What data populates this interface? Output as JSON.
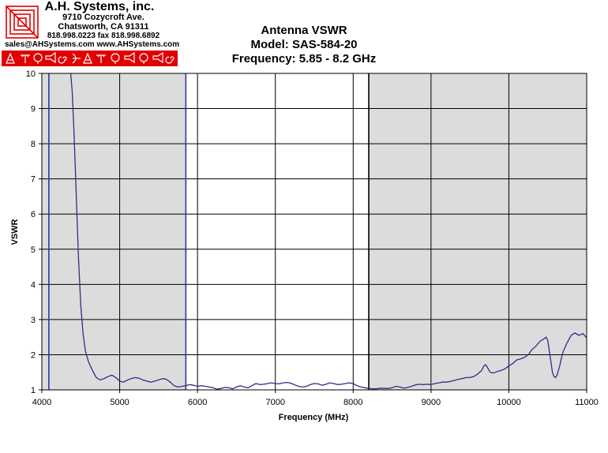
{
  "company": {
    "name": "A.H. Systems, inc.",
    "street": "9710 Cozycroft Ave.",
    "city": "Chatsworth, CA 91311",
    "phone": "818.998.0223 fax 818.998.6892",
    "contact": "sales@AHSystems.com www.AHSystems.com",
    "brand_color": "#e00000"
  },
  "chart_data": {
    "type": "line",
    "title": "Antenna VSWR",
    "subtitle_model": "Model: SAS-584-20",
    "subtitle_freq": "Frequency: 5.85 - 8.2 GHz",
    "xlabel": "Frequency (MHz)",
    "ylabel": "VSWR",
    "xlim": [
      4000,
      11000
    ],
    "ylim": [
      1,
      10
    ],
    "xticks": [
      4000,
      5000,
      6000,
      7000,
      8000,
      9000,
      10000,
      11000
    ],
    "yticks": [
      1,
      2,
      3,
      4,
      5,
      6,
      7,
      8,
      9,
      10
    ],
    "grid": true,
    "shaded_bands": [
      [
        4000,
        5850
      ],
      [
        8200,
        11000
      ]
    ],
    "marker_lines": [
      4090,
      5850,
      8200
    ],
    "line_color": "#2e2e8a",
    "shade_color": "#dcdcdc",
    "series": [
      {
        "x": [
          4370,
          4390,
          4410,
          4430,
          4450,
          4470,
          4500,
          4530,
          4560,
          4600,
          4650,
          4700,
          4750,
          4800,
          4850,
          4900,
          4950,
          5000,
          5050,
          5100,
          5150,
          5200,
          5250,
          5300,
          5350,
          5400,
          5450,
          5500,
          5550,
          5600,
          5650,
          5700,
          5750,
          5800,
          5850,
          5900,
          5950,
          6000,
          6050,
          6100,
          6150,
          6200,
          6250,
          6300,
          6350,
          6400,
          6450,
          6500,
          6550,
          6600,
          6650,
          6700,
          6750,
          6800,
          6850,
          6900,
          6950,
          7000,
          7050,
          7100,
          7150,
          7200,
          7250,
          7300,
          7350,
          7400,
          7450,
          7500,
          7550,
          7600,
          7650,
          7700,
          7750,
          7800,
          7850,
          7900,
          7950,
          8000,
          8050,
          8100,
          8150,
          8200,
          8250,
          8300,
          8350,
          8400,
          8450,
          8500,
          8550,
          8600,
          8650,
          8700,
          8750,
          8800,
          8850,
          8900,
          8950,
          9000,
          9050,
          9100,
          9150,
          9200,
          9250,
          9300,
          9350,
          9400,
          9450,
          9500,
          9550,
          9600,
          9650,
          9680,
          9700,
          9730,
          9760,
          9800,
          9850,
          9900,
          9950,
          10000,
          10050,
          10100,
          10150,
          10200,
          10250,
          10300,
          10350,
          10400,
          10450,
          10480,
          10500,
          10520,
          10540,
          10560,
          10580,
          10600,
          10620,
          10650,
          10680,
          10700,
          10750,
          10800,
          10850,
          10900,
          10950,
          11000
        ],
        "y": [
          10,
          9.5,
          8.5,
          7.3,
          6.0,
          4.8,
          3.4,
          2.6,
          2.1,
          1.8,
          1.55,
          1.35,
          1.28,
          1.32,
          1.38,
          1.42,
          1.35,
          1.25,
          1.22,
          1.28,
          1.32,
          1.35,
          1.33,
          1.28,
          1.25,
          1.22,
          1.25,
          1.28,
          1.32,
          1.3,
          1.22,
          1.12,
          1.08,
          1.1,
          1.12,
          1.15,
          1.13,
          1.1,
          1.12,
          1.1,
          1.08,
          1.06,
          1.02,
          1.04,
          1.07,
          1.06,
          1.03,
          1.08,
          1.12,
          1.08,
          1.06,
          1.12,
          1.18,
          1.15,
          1.16,
          1.18,
          1.2,
          1.18,
          1.17,
          1.2,
          1.21,
          1.19,
          1.14,
          1.1,
          1.08,
          1.1,
          1.15,
          1.18,
          1.17,
          1.13,
          1.16,
          1.2,
          1.18,
          1.15,
          1.16,
          1.18,
          1.2,
          1.18,
          1.12,
          1.08,
          1.06,
          1.04,
          1.03,
          1.03,
          1.05,
          1.04,
          1.04,
          1.06,
          1.1,
          1.08,
          1.05,
          1.07,
          1.1,
          1.14,
          1.16,
          1.15,
          1.16,
          1.15,
          1.18,
          1.2,
          1.22,
          1.22,
          1.24,
          1.27,
          1.3,
          1.32,
          1.35,
          1.35,
          1.38,
          1.45,
          1.55,
          1.68,
          1.72,
          1.62,
          1.5,
          1.48,
          1.52,
          1.55,
          1.6,
          1.68,
          1.75,
          1.85,
          1.88,
          1.92,
          2.0,
          2.15,
          2.25,
          2.38,
          2.45,
          2.5,
          2.4,
          2.1,
          1.8,
          1.5,
          1.38,
          1.35,
          1.42,
          1.65,
          1.95,
          2.1,
          2.35,
          2.55,
          2.62,
          2.55,
          2.6,
          2.48
        ]
      }
    ]
  }
}
